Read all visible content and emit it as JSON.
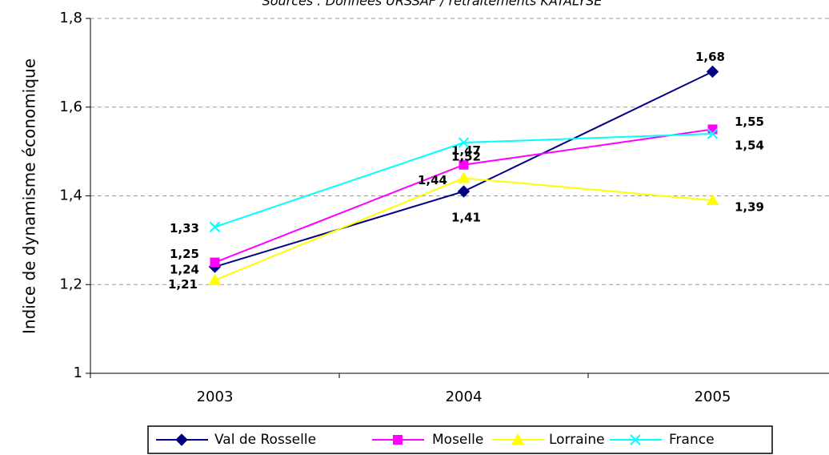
{
  "chart_data": {
    "type": "line",
    "title": "Sources : Données URSSAF / retraitements KATALYSE",
    "y_label": "Indice de dynamisme économique",
    "categories": [
      "2003",
      "2004",
      "2005"
    ],
    "series": [
      {
        "name": "Val de Rosselle",
        "color": "#000080",
        "marker": "diamond",
        "values": [
          1.24,
          1.41,
          1.68
        ],
        "value_labels": [
          "1,24",
          "1,41",
          "1,68"
        ]
      },
      {
        "name": "Moselle",
        "color": "#ff00ff",
        "marker": "square",
        "values": [
          1.25,
          1.47,
          1.55
        ],
        "value_labels": [
          "1,25",
          "1,47",
          "1,55"
        ]
      },
      {
        "name": "Lorraine",
        "color": "#ffff00",
        "marker": "triangle",
        "values": [
          1.21,
          1.44,
          1.39
        ],
        "value_labels": [
          "1,21",
          "1,44",
          "1,39"
        ]
      },
      {
        "name": "France",
        "color": "#00ffff",
        "marker": "x",
        "values": [
          1.33,
          1.52,
          1.54
        ],
        "value_labels": [
          "1,33",
          "1,52",
          "1,54"
        ]
      }
    ],
    "ylim": [
      1,
      1.8
    ],
    "yticks": [
      1,
      {
        "value": 1.2,
        "label": "1,2"
      },
      {
        "value": 1.4,
        "label": "1,4"
      },
      {
        "value": 1.6,
        "label": "1,6"
      },
      {
        "value": 1.8,
        "label": "1,8"
      }
    ],
    "grid": true,
    "legend": "bottom"
  }
}
